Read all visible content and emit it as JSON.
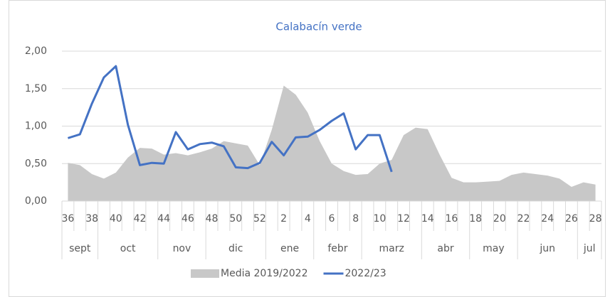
{
  "chart_data": {
    "type": "line",
    "title": "Calabacín verde",
    "title_color": "#4472c4",
    "categories": [
      "36",
      null,
      "38",
      null,
      "40",
      null,
      "42",
      null,
      "44",
      null,
      "46",
      null,
      "48",
      null,
      "50",
      null,
      "52",
      null,
      "2",
      null,
      "4",
      null,
      "6",
      null,
      "8",
      null,
      "10",
      null,
      "12",
      null,
      "14",
      null,
      "16",
      null,
      "18",
      null,
      "20",
      null,
      "22",
      null,
      "24",
      null,
      "26",
      null,
      "28"
    ],
    "category_groups": [
      "sept",
      "sept",
      "sept",
      "oct",
      "oct",
      "oct",
      "oct",
      "oct",
      "nov",
      "nov",
      "nov",
      "nov",
      "dic",
      "dic",
      "dic",
      "dic",
      "dic",
      "ene",
      "ene",
      "ene",
      "ene",
      "febr",
      "febr",
      "febr",
      "febr",
      "marz",
      "marz",
      "marz",
      "marz",
      "marz",
      "abr",
      "abr",
      "abr",
      "abr",
      "may",
      "may",
      "may",
      "may",
      "jun",
      "jun",
      "jun",
      "jun",
      "jun",
      "jul",
      "jul"
    ],
    "series": [
      {
        "name": "Media 2019/2022",
        "type": "area",
        "color": "#c8c8c8",
        "values": [
          0.51,
          0.48,
          0.36,
          0.3,
          0.38,
          0.58,
          0.71,
          0.7,
          0.62,
          0.64,
          0.61,
          0.65,
          0.7,
          0.8,
          0.77,
          0.74,
          0.48,
          0.95,
          1.54,
          1.42,
          1.18,
          0.8,
          0.5,
          0.4,
          0.35,
          0.36,
          0.5,
          0.55,
          0.88,
          0.98,
          0.96,
          0.62,
          0.31,
          0.25,
          0.25,
          0.26,
          0.27,
          0.35,
          0.38,
          0.36,
          0.34,
          0.3,
          0.19,
          0.25,
          0.22
        ]
      },
      {
        "name": "2022/23",
        "type": "line",
        "color": "#4472c4",
        "values": [
          0.84,
          0.89,
          1.3,
          1.65,
          1.8,
          1.02,
          0.48,
          0.51,
          0.5,
          0.92,
          0.69,
          0.76,
          0.78,
          0.73,
          0.45,
          0.44,
          0.51,
          0.79,
          0.61,
          0.85,
          0.86,
          0.95,
          1.07,
          1.17,
          0.69,
          0.88,
          0.88,
          0.39,
          null,
          null,
          null,
          null,
          null,
          null,
          null,
          null,
          null,
          null,
          null,
          null,
          null,
          null,
          null,
          null,
          null
        ]
      }
    ],
    "ylim": [
      0,
      2
    ],
    "yticks": [
      {
        "value": 0,
        "label": "0,00"
      },
      {
        "value": 0.5,
        "label": "0,50"
      },
      {
        "value": 1,
        "label": "1,00"
      },
      {
        "value": 1.5,
        "label": "1,50"
      },
      {
        "value": 2,
        "label": "2,00"
      }
    ],
    "grid": true,
    "legend": "bottom"
  }
}
